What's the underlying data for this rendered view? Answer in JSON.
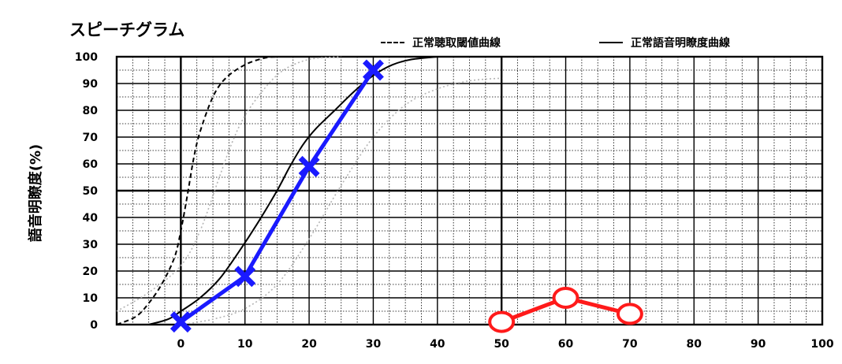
{
  "chart_data": {
    "type": "line",
    "title": "スピーチグラム",
    "ylabel": "語音明瞭度(%)",
    "xlabel": "",
    "xlim": [
      -10,
      100
    ],
    "ylim": [
      0,
      100
    ],
    "x_ticks": [
      0,
      10,
      20,
      30,
      40,
      50,
      60,
      70,
      80,
      90,
      100
    ],
    "y_ticks": [
      0,
      10,
      20,
      30,
      40,
      50,
      60,
      70,
      80,
      90,
      100
    ],
    "grid": true,
    "legend_position": "top-right",
    "legend": [
      {
        "label": "正常聴取閾値曲線",
        "style": "dashed"
      },
      {
        "label": "正常語音明瞭度曲線",
        "style": "solid"
      }
    ],
    "series": [
      {
        "style": "dashed",
        "color": "#000000",
        "marker": "none",
        "x": [
          -10,
          -7,
          -5,
          -3,
          -1,
          0,
          1,
          2,
          3,
          5,
          7,
          10,
          13,
          15
        ],
        "y": [
          0,
          3,
          8,
          15,
          25,
          35,
          48,
          62,
          72,
          85,
          92,
          97,
          99.5,
          100
        ]
      },
      {
        "style": "solid",
        "color": "#000000",
        "marker": "none",
        "x": [
          -5,
          -2,
          0,
          3,
          6,
          9,
          12,
          15,
          17,
          19,
          21,
          24,
          27,
          30,
          33,
          36,
          40
        ],
        "y": [
          0,
          2,
          5,
          10,
          17,
          27,
          38,
          50,
          59,
          67,
          73,
          80,
          87,
          93,
          97,
          99,
          100
        ]
      },
      {
        "style": "dotted",
        "color": "#b4b4b4",
        "marker": "none",
        "x": [
          -10,
          -5,
          0,
          3,
          6,
          8,
          10,
          13,
          16,
          20,
          25
        ],
        "y": [
          5,
          12,
          22,
          35,
          55,
          68,
          78,
          88,
          95,
          99,
          100
        ]
      },
      {
        "style": "dotted",
        "color": "#b4b4b4",
        "marker": "none",
        "x": [
          0,
          5,
          10,
          15,
          20,
          25,
          30,
          35,
          40,
          45,
          50
        ],
        "y": [
          0,
          2,
          6,
          15,
          32,
          52,
          70,
          82,
          88,
          91,
          92
        ]
      },
      {
        "style": "solid",
        "color": "#1a1aff",
        "marker": "x",
        "x": [
          0,
          10,
          20,
          30
        ],
        "y": [
          1,
          18,
          59,
          95
        ]
      },
      {
        "style": "solid",
        "color": "#ff1a1a",
        "marker": "o",
        "x": [
          50,
          60,
          70
        ],
        "y": [
          1,
          10,
          4
        ]
      }
    ]
  }
}
